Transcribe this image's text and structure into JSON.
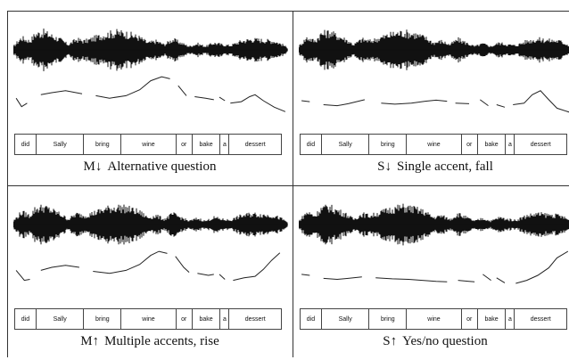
{
  "panels": [
    {
      "id": "m-fall",
      "symbol": "M↓",
      "caption": "Alternative question",
      "words": [
        "did",
        "Sally",
        "bring",
        "wine",
        "or",
        "bake",
        "a",
        "dessert"
      ],
      "pitch_contour": [
        [
          [
            0.01,
            0.45
          ],
          [
            0.03,
            0.62
          ],
          [
            0.05,
            0.55
          ]
        ],
        [
          [
            0.1,
            0.38
          ],
          [
            0.14,
            0.34
          ],
          [
            0.19,
            0.3
          ],
          [
            0.25,
            0.36
          ]
        ],
        [
          [
            0.3,
            0.4
          ],
          [
            0.35,
            0.45
          ],
          [
            0.41,
            0.4
          ],
          [
            0.46,
            0.28
          ],
          [
            0.5,
            0.1
          ],
          [
            0.54,
            0.02
          ],
          [
            0.57,
            0.06
          ]
        ],
        [
          [
            0.6,
            0.2
          ],
          [
            0.63,
            0.4
          ]
        ],
        [
          [
            0.66,
            0.42
          ],
          [
            0.7,
            0.45
          ],
          [
            0.73,
            0.48
          ]
        ],
        [
          [
            0.75,
            0.43
          ],
          [
            0.77,
            0.5
          ]
        ],
        [
          [
            0.79,
            0.55
          ],
          [
            0.83,
            0.52
          ],
          [
            0.86,
            0.42
          ],
          [
            0.88,
            0.38
          ],
          [
            0.91,
            0.5
          ],
          [
            0.95,
            0.63
          ],
          [
            0.99,
            0.72
          ]
        ]
      ]
    },
    {
      "id": "s-fall",
      "symbol": "S↓",
      "caption": "Single accent, fall",
      "words": [
        "did",
        "Sally",
        "bring",
        "wine",
        "or",
        "bake",
        "a",
        "dessert"
      ],
      "pitch_contour": [
        [
          [
            0.01,
            0.5
          ],
          [
            0.04,
            0.52
          ]
        ],
        [
          [
            0.09,
            0.58
          ],
          [
            0.14,
            0.6
          ],
          [
            0.18,
            0.56
          ],
          [
            0.24,
            0.48
          ]
        ],
        [
          [
            0.3,
            0.55
          ],
          [
            0.35,
            0.57
          ],
          [
            0.41,
            0.55
          ],
          [
            0.46,
            0.51
          ],
          [
            0.5,
            0.49
          ],
          [
            0.54,
            0.51
          ]
        ],
        [
          [
            0.57,
            0.55
          ],
          [
            0.62,
            0.56
          ]
        ],
        [
          [
            0.66,
            0.48
          ],
          [
            0.69,
            0.6
          ]
        ],
        [
          [
            0.72,
            0.58
          ],
          [
            0.75,
            0.63
          ]
        ],
        [
          [
            0.78,
            0.58
          ],
          [
            0.82,
            0.55
          ],
          [
            0.85,
            0.38
          ],
          [
            0.88,
            0.3
          ],
          [
            0.91,
            0.48
          ],
          [
            0.94,
            0.65
          ],
          [
            0.99,
            0.74
          ]
        ]
      ]
    },
    {
      "id": "m-rise",
      "symbol": "M↑",
      "caption": "Multiple accents, rise",
      "words": [
        "did",
        "Sally",
        "bring",
        "wine",
        "or",
        "bake",
        "a",
        "dessert"
      ],
      "pitch_contour": [
        [
          [
            0.01,
            0.4
          ],
          [
            0.04,
            0.6
          ],
          [
            0.06,
            0.58
          ]
        ],
        [
          [
            0.1,
            0.4
          ],
          [
            0.14,
            0.34
          ],
          [
            0.19,
            0.3
          ],
          [
            0.24,
            0.34
          ]
        ],
        [
          [
            0.29,
            0.42
          ],
          [
            0.35,
            0.46
          ],
          [
            0.41,
            0.4
          ],
          [
            0.46,
            0.28
          ],
          [
            0.5,
            0.1
          ],
          [
            0.53,
            0.02
          ],
          [
            0.56,
            0.06
          ]
        ],
        [
          [
            0.59,
            0.12
          ],
          [
            0.62,
            0.34
          ],
          [
            0.64,
            0.44
          ]
        ],
        [
          [
            0.67,
            0.46
          ],
          [
            0.71,
            0.5
          ],
          [
            0.73,
            0.48
          ]
        ],
        [
          [
            0.75,
            0.48
          ],
          [
            0.77,
            0.58
          ]
        ],
        [
          [
            0.8,
            0.6
          ],
          [
            0.84,
            0.55
          ],
          [
            0.88,
            0.52
          ],
          [
            0.91,
            0.38
          ],
          [
            0.94,
            0.2
          ],
          [
            0.97,
            0.05
          ]
        ]
      ]
    },
    {
      "id": "s-rise",
      "symbol": "S↑",
      "caption": "Yes/no question",
      "words": [
        "did",
        "Sally",
        "bring",
        "wine",
        "or",
        "bake",
        "a",
        "dessert"
      ],
      "pitch_contour": [
        [
          [
            0.01,
            0.48
          ],
          [
            0.04,
            0.5
          ]
        ],
        [
          [
            0.09,
            0.56
          ],
          [
            0.14,
            0.58
          ],
          [
            0.18,
            0.56
          ],
          [
            0.23,
            0.53
          ]
        ],
        [
          [
            0.28,
            0.55
          ],
          [
            0.34,
            0.57
          ],
          [
            0.4,
            0.58
          ],
          [
            0.45,
            0.6
          ],
          [
            0.5,
            0.62
          ],
          [
            0.54,
            0.63
          ]
        ],
        [
          [
            0.58,
            0.6
          ],
          [
            0.62,
            0.62
          ],
          [
            0.64,
            0.63
          ]
        ],
        [
          [
            0.67,
            0.48
          ],
          [
            0.7,
            0.6
          ]
        ],
        [
          [
            0.72,
            0.55
          ],
          [
            0.75,
            0.65
          ]
        ],
        [
          [
            0.79,
            0.66
          ],
          [
            0.83,
            0.6
          ],
          [
            0.87,
            0.5
          ],
          [
            0.91,
            0.35
          ],
          [
            0.94,
            0.15
          ],
          [
            0.98,
            0.02
          ]
        ]
      ]
    }
  ]
}
